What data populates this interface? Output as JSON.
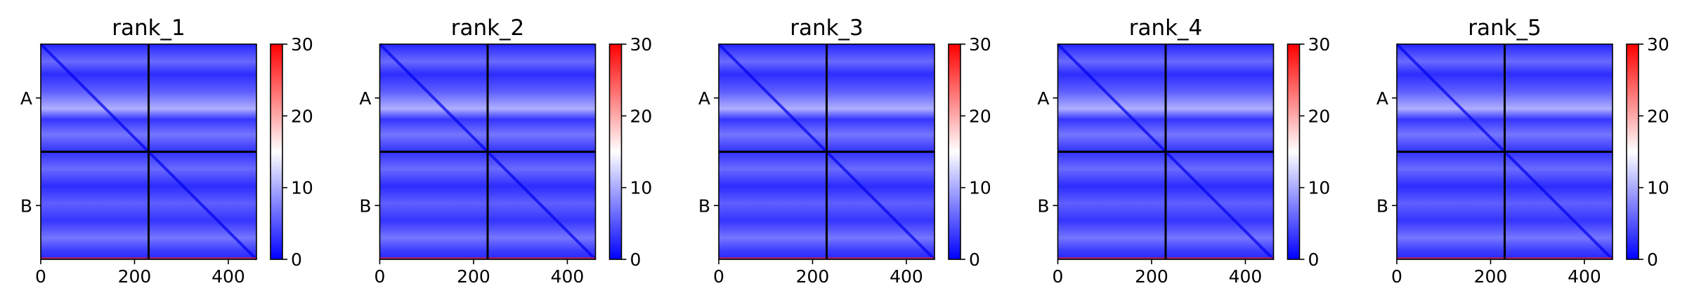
{
  "chart_data": [
    {
      "type": "heatmap",
      "title": "rank_1",
      "x_ticks": [
        0,
        200,
        400
      ],
      "xlim": [
        0,
        460
      ],
      "y_tick_labels": [
        "A",
        "B"
      ],
      "chain_boundary": 230,
      "colorbar": {
        "ticks": [
          0,
          10,
          20,
          30
        ],
        "range": [
          0,
          30
        ],
        "colors": [
          "#0000ff",
          "#ffffff",
          "#ff0000"
        ]
      }
    },
    {
      "type": "heatmap",
      "title": "rank_2",
      "x_ticks": [
        0,
        200,
        400
      ],
      "xlim": [
        0,
        460
      ],
      "y_tick_labels": [
        "A",
        "B"
      ],
      "chain_boundary": 230,
      "colorbar": {
        "ticks": [
          0,
          10,
          20,
          30
        ],
        "range": [
          0,
          30
        ],
        "colors": [
          "#0000ff",
          "#ffffff",
          "#ff0000"
        ]
      }
    },
    {
      "type": "heatmap",
      "title": "rank_3",
      "x_ticks": [
        0,
        200,
        400
      ],
      "xlim": [
        0,
        460
      ],
      "y_tick_labels": [
        "A",
        "B"
      ],
      "chain_boundary": 230,
      "colorbar": {
        "ticks": [
          0,
          10,
          20,
          30
        ],
        "range": [
          0,
          30
        ],
        "colors": [
          "#0000ff",
          "#ffffff",
          "#ff0000"
        ]
      }
    },
    {
      "type": "heatmap",
      "title": "rank_4",
      "x_ticks": [
        0,
        200,
        400
      ],
      "xlim": [
        0,
        460
      ],
      "y_tick_labels": [
        "A",
        "B"
      ],
      "chain_boundary": 230,
      "colorbar": {
        "ticks": [
          0,
          10,
          20,
          30
        ],
        "range": [
          0,
          30
        ],
        "colors": [
          "#0000ff",
          "#ffffff",
          "#ff0000"
        ]
      }
    },
    {
      "type": "heatmap",
      "title": "rank_5",
      "x_ticks": [
        0,
        200,
        400
      ],
      "xlim": [
        0,
        460
      ],
      "y_tick_labels": [
        "A",
        "B"
      ],
      "chain_boundary": 230,
      "colorbar": {
        "ticks": [
          0,
          10,
          20,
          30
        ],
        "range": [
          0,
          30
        ],
        "colors": [
          "#0000ff",
          "#ffffff",
          "#ff0000"
        ]
      }
    }
  ]
}
